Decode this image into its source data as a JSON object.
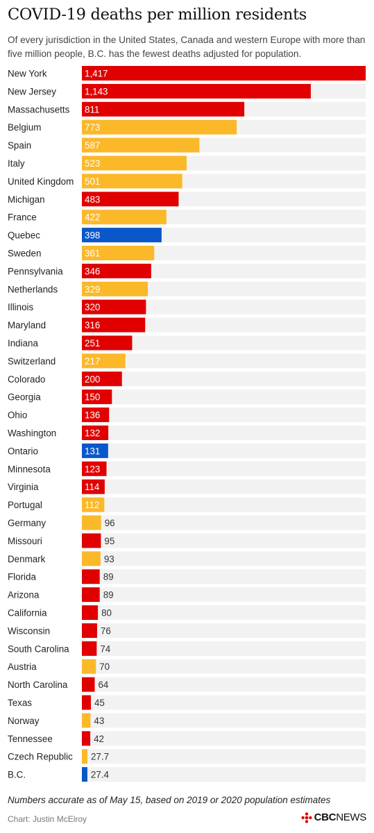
{
  "header": {
    "title": "COVID-19 deaths per million residents",
    "subtitle": "Of every jurisdiction in the United States, Canada and western Europe with more than five million people, B.C. has the fewest deaths adjusted for population."
  },
  "footer": {
    "note": "Numbers accurate as of May 15, based on 2019 or 2020 population estimates",
    "credit": "Chart: Justin McElroy",
    "logo_text_a": "CBC",
    "logo_text_b": "NEWS"
  },
  "colors": {
    "us": "#e00000",
    "europe": "#fbb829",
    "canada": "#0a57c9",
    "track": "#f2f2f2",
    "label_inside": "#ffffff",
    "label_outside": "#333333"
  },
  "chart_data": {
    "type": "bar",
    "orientation": "horizontal",
    "title": "COVID-19 deaths per million residents",
    "xlim": [
      0,
      1417
    ],
    "grid": false,
    "categories": [
      "New York",
      "New Jersey",
      "Massachusetts",
      "Belgium",
      "Spain",
      "Italy",
      "United Kingdom",
      "Michigan",
      "France",
      "Quebec",
      "Sweden",
      "Pennsylvania",
      "Netherlands",
      "Illinois",
      "Maryland",
      "Indiana",
      "Switzerland",
      "Colorado",
      "Georgia",
      "Ohio",
      "Washington",
      "Ontario",
      "Minnesota",
      "Virginia",
      "Portugal",
      "Germany",
      "Missouri",
      "Denmark",
      "Florida",
      "Arizona",
      "California",
      "Wisconsin",
      "South Carolina",
      "Austria",
      "North Carolina",
      "Texas",
      "Norway",
      "Tennessee",
      "Czech Republic",
      "B.C."
    ],
    "values": [
      1417,
      1143,
      811,
      773,
      587,
      523,
      501,
      483,
      422,
      398,
      361,
      346,
      329,
      320,
      316,
      251,
      217,
      200,
      150,
      136,
      132,
      131,
      123,
      114,
      112,
      96,
      95,
      93,
      89,
      89,
      80,
      76,
      74,
      70,
      64,
      45,
      43,
      42,
      27.7,
      27.4
    ],
    "labels": [
      "1,417",
      "1,143",
      "811",
      "773",
      "587",
      "523",
      "501",
      "483",
      "422",
      "398",
      "361",
      "346",
      "329",
      "320",
      "316",
      "251",
      "217",
      "200",
      "150",
      "136",
      "132",
      "131",
      "123",
      "114",
      "112",
      "96",
      "95",
      "93",
      "89",
      "89",
      "80",
      "76",
      "74",
      "70",
      "64",
      "45",
      "43",
      "42",
      "27.7",
      "27.4"
    ],
    "groups": [
      "us",
      "us",
      "us",
      "europe",
      "europe",
      "europe",
      "europe",
      "us",
      "europe",
      "canada",
      "europe",
      "us",
      "europe",
      "us",
      "us",
      "us",
      "europe",
      "us",
      "us",
      "us",
      "us",
      "canada",
      "us",
      "us",
      "europe",
      "europe",
      "us",
      "europe",
      "us",
      "us",
      "us",
      "us",
      "us",
      "europe",
      "us",
      "us",
      "europe",
      "us",
      "europe",
      "canada"
    ]
  }
}
